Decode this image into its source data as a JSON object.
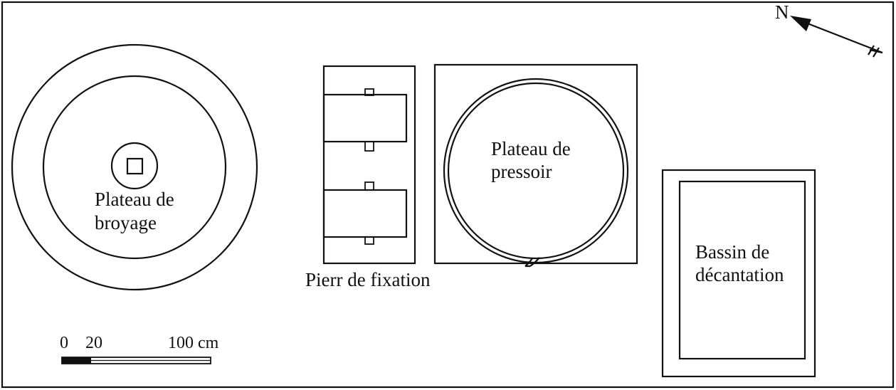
{
  "diagram": {
    "labels": {
      "broyage_line1": "Plateau de",
      "broyage_line2": "broyage",
      "fixation": "Pierr de fixation",
      "pressoir_line1": "Plateau de",
      "pressoir_line2": "pressoir",
      "bassin_line1": "Bassin de",
      "bassin_line2": "décantation"
    },
    "north": {
      "label": "N"
    },
    "scale_bar": {
      "ticks": [
        "0",
        "20",
        "100 cm"
      ]
    },
    "colors": {
      "ink": "#111111",
      "background": "#ffffff"
    }
  }
}
